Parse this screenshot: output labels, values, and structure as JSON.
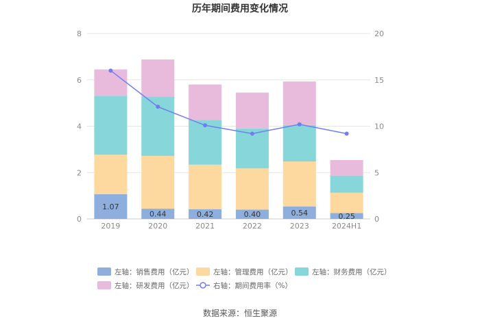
{
  "chart_data": {
    "type": "bar",
    "title": "历年期间费用变化情况",
    "categories": [
      "2019",
      "2020",
      "2021",
      "2022",
      "2023",
      "2024H1"
    ],
    "y_left": {
      "ylim": [
        0,
        8
      ],
      "ticks": [
        0,
        2,
        4,
        6,
        8
      ]
    },
    "y_right": {
      "ylim": [
        0,
        20
      ],
      "ticks": [
        0,
        5,
        10,
        15,
        20
      ]
    },
    "series": [
      {
        "name": "左轴：销售费用（亿元）",
        "type": "bar",
        "axis": "left",
        "color": "#8eaedd",
        "values": [
          1.07,
          0.44,
          0.42,
          0.4,
          0.54,
          0.25
        ],
        "data_labels": [
          "1.07",
          "0.44",
          "0.42",
          "0.40",
          "0.54",
          "0.25"
        ]
      },
      {
        "name": "左轴：管理费用（亿元）",
        "type": "bar",
        "axis": "left",
        "color": "#fdd99f",
        "values": [
          1.7,
          2.28,
          1.92,
          1.78,
          1.94,
          0.88
        ]
      },
      {
        "name": "左轴：财务费用（亿元）",
        "type": "bar",
        "axis": "left",
        "color": "#86d6da",
        "values": [
          2.54,
          2.56,
          1.93,
          1.72,
          1.57,
          0.74
        ]
      },
      {
        "name": "左轴：研发费用（亿元）",
        "type": "bar",
        "axis": "left",
        "color": "#e8bbdc",
        "values": [
          1.14,
          1.6,
          1.53,
          1.55,
          1.88,
          0.67
        ]
      },
      {
        "name": "右轴：期间费用率（%）",
        "type": "line",
        "axis": "right",
        "color": "#6f7ef0",
        "values": [
          16.0,
          12.1,
          10.1,
          9.2,
          10.2,
          9.2
        ]
      }
    ],
    "legend_position": "bottom",
    "grid": true
  },
  "source": "数据来源：恒生聚源"
}
